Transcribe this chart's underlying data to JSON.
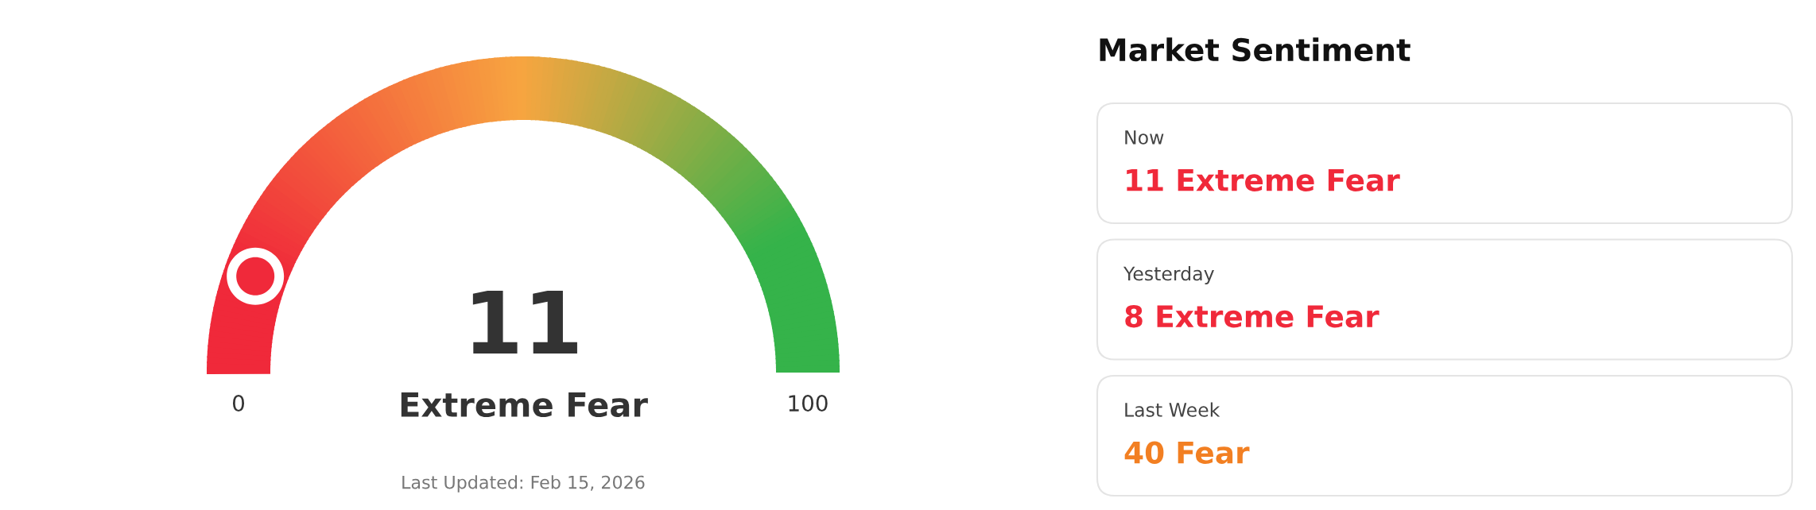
{
  "chart_data": [
    {
      "type": "other",
      "subtitle": "Extreme Fear",
      "values": [
        11
      ],
      "value_labels": [
        "11"
      ],
      "color": "#f0293a",
      "annotations": [
        "0",
        "100",
        "Last Updated: Feb 15, 2026"
      ]
    },
    {
      "type": "other",
      "title": "Market Sentiment",
      "categories": [
        "Now",
        "Yesterday",
        "Last Week"
      ],
      "value_labels": [
        "11 Extreme Fear",
        "8 Extreme Fear",
        "40 Fear"
      ],
      "colors": [
        "#f0293a",
        "#f0293a",
        "#f27f22"
      ]
    }
  ]
}
